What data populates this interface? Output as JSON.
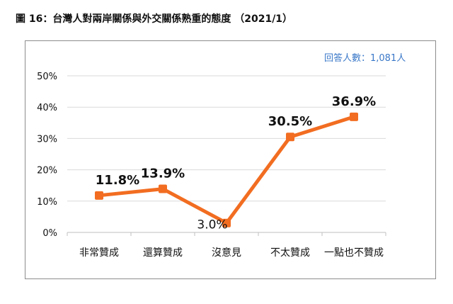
{
  "figure": {
    "title": "圖 16：台灣人對兩岸關係與外交關係熟重的態度 （2021/1）",
    "respondents": "回答人數：1,081人"
  },
  "colors": {
    "line": "#f26d21",
    "marker": "#f26d21",
    "gridline": "#d9d9d9",
    "axis_text": "#111111",
    "respondents_text": "#3a78c8"
  },
  "chart_data": {
    "type": "line",
    "title": "",
    "xlabel": "",
    "ylabel": "",
    "categories": [
      "非常贊成",
      "還算贊成",
      "沒意見",
      "不太贊成",
      "一點也不贊成"
    ],
    "values": [
      11.8,
      13.9,
      3.0,
      30.5,
      36.9
    ],
    "data_labels": [
      "11.8%",
      "13.9%",
      "3.0%",
      "30.5%",
      "36.9%"
    ],
    "yticks": [
      "0%",
      "10%",
      "20%",
      "30%",
      "40%",
      "50%"
    ],
    "ylim": [
      0,
      50
    ],
    "grid": true,
    "legend": "none"
  }
}
